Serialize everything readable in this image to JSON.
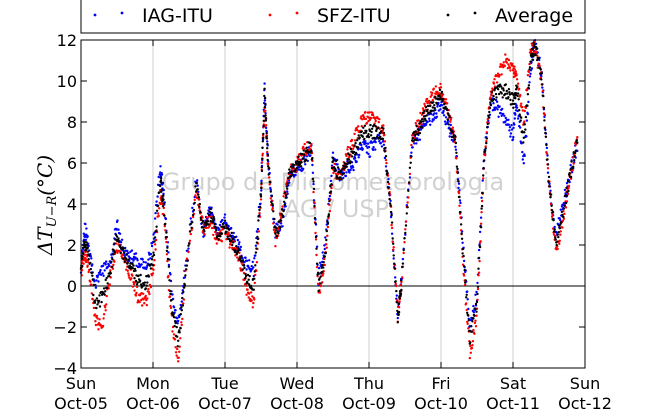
{
  "chart_data": {
    "type": "scatter",
    "title": "",
    "xlabel": "",
    "ylabel": "ΔT_{U−R}(°C)",
    "ylabel_main": "ΔT",
    "ylabel_sub": "U−R",
    "ylabel_unit": "(°C)",
    "ylim": [
      -4,
      12
    ],
    "yticks": [
      -4,
      -2,
      0,
      2,
      4,
      6,
      8,
      10,
      12
    ],
    "xlim": [
      0,
      7
    ],
    "xticks": [
      {
        "x": 0,
        "day": "Sun",
        "date": "Oct-05"
      },
      {
        "x": 1,
        "day": "Mon",
        "date": "Oct-06"
      },
      {
        "x": 2,
        "day": "Tue",
        "date": "Oct-07"
      },
      {
        "x": 3,
        "day": "Wed",
        "date": "Oct-08"
      },
      {
        "x": 4,
        "day": "Thu",
        "date": "Oct-09"
      },
      {
        "x": 5,
        "day": "Fri",
        "date": "Oct-10"
      },
      {
        "x": 6,
        "day": "Sat",
        "date": "Oct-11"
      },
      {
        "x": 7,
        "day": "Sun",
        "date": "Oct-12"
      }
    ],
    "grid": true,
    "zero_line": true,
    "legend_position": "top",
    "watermark_line1": "Grupo de Micrometeorologia",
    "watermark_line2": "IAG / USP",
    "series": [
      {
        "name": "IAG-ITU",
        "color": "#0000ff",
        "points": [
          [
            0,
            1.0
          ],
          [
            0.05,
            2.8
          ],
          [
            0.1,
            2.2
          ],
          [
            0.2,
            0.0
          ],
          [
            0.3,
            0.8
          ],
          [
            0.4,
            1.0
          ],
          [
            0.5,
            3.0
          ],
          [
            0.6,
            1.6
          ],
          [
            0.7,
            1.4
          ],
          [
            0.8,
            1.2
          ],
          [
            0.9,
            1.0
          ],
          [
            1.0,
            2.0
          ],
          [
            1.1,
            5.8
          ],
          [
            1.15,
            4.4
          ],
          [
            1.25,
            0.0
          ],
          [
            1.35,
            -2.0
          ],
          [
            1.45,
            0.8
          ],
          [
            1.6,
            5.2
          ],
          [
            1.7,
            2.6
          ],
          [
            1.8,
            3.8
          ],
          [
            1.9,
            2.6
          ],
          [
            2.0,
            3.2
          ],
          [
            2.1,
            2.4
          ],
          [
            2.2,
            1.8
          ],
          [
            2.3,
            1.0
          ],
          [
            2.4,
            0.8
          ],
          [
            2.5,
            4.6
          ],
          [
            2.55,
            9.6
          ],
          [
            2.6,
            6.0
          ],
          [
            2.7,
            2.6
          ],
          [
            2.8,
            3.2
          ],
          [
            2.9,
            5.4
          ],
          [
            3.0,
            5.8
          ],
          [
            3.1,
            6.0
          ],
          [
            3.2,
            6.8
          ],
          [
            3.3,
            0.4
          ],
          [
            3.4,
            2.2
          ],
          [
            3.5,
            6.4
          ],
          [
            3.6,
            5.4
          ],
          [
            3.7,
            5.8
          ],
          [
            3.8,
            6.0
          ],
          [
            3.9,
            7.0
          ],
          [
            4.0,
            6.6
          ],
          [
            4.1,
            7.0
          ],
          [
            4.2,
            7.2
          ],
          [
            4.3,
            4.0
          ],
          [
            4.4,
            -1.6
          ],
          [
            4.45,
            0.2
          ],
          [
            4.6,
            7.0
          ],
          [
            4.7,
            7.4
          ],
          [
            4.8,
            8.2
          ],
          [
            4.9,
            8.2
          ],
          [
            5.0,
            9.0
          ],
          [
            5.1,
            7.8
          ],
          [
            5.2,
            7.0
          ],
          [
            5.3,
            2.4
          ],
          [
            5.4,
            -2.0
          ],
          [
            5.5,
            -0.4
          ],
          [
            5.6,
            6.4
          ],
          [
            5.7,
            9.0
          ],
          [
            5.8,
            8.6
          ],
          [
            5.9,
            8.0
          ],
          [
            6.0,
            7.4
          ],
          [
            6.05,
            9.0
          ],
          [
            6.15,
            6.0
          ],
          [
            6.25,
            10.6
          ],
          [
            6.3,
            11.8
          ],
          [
            6.4,
            10.4
          ],
          [
            6.5,
            5.0
          ],
          [
            6.6,
            2.4
          ],
          [
            6.7,
            4.0
          ],
          [
            6.8,
            5.6
          ],
          [
            6.9,
            7.0
          ]
        ]
      },
      {
        "name": "SFZ-ITU",
        "color": "#ff0000",
        "points": [
          [
            0,
            0.6
          ],
          [
            0.05,
            1.6
          ],
          [
            0.1,
            1.0
          ],
          [
            0.2,
            -1.6
          ],
          [
            0.3,
            -2.0
          ],
          [
            0.4,
            0.4
          ],
          [
            0.5,
            2.0
          ],
          [
            0.6,
            1.2
          ],
          [
            0.7,
            0.4
          ],
          [
            0.8,
            -0.6
          ],
          [
            0.9,
            -0.8
          ],
          [
            1.0,
            0.6
          ],
          [
            1.1,
            4.4
          ],
          [
            1.15,
            3.6
          ],
          [
            1.25,
            -1.4
          ],
          [
            1.35,
            -3.6
          ],
          [
            1.45,
            0.4
          ],
          [
            1.6,
            4.6
          ],
          [
            1.7,
            2.8
          ],
          [
            1.8,
            3.2
          ],
          [
            1.9,
            2.2
          ],
          [
            2.0,
            2.6
          ],
          [
            2.1,
            2.0
          ],
          [
            2.2,
            1.4
          ],
          [
            2.3,
            -0.2
          ],
          [
            2.4,
            -0.8
          ],
          [
            2.5,
            4.4
          ],
          [
            2.55,
            9.0
          ],
          [
            2.6,
            5.8
          ],
          [
            2.7,
            2.2
          ],
          [
            2.8,
            3.8
          ],
          [
            2.9,
            5.6
          ],
          [
            3.0,
            6.0
          ],
          [
            3.1,
            6.6
          ],
          [
            3.2,
            7.0
          ],
          [
            3.3,
            -0.6
          ],
          [
            3.4,
            1.6
          ],
          [
            3.5,
            5.8
          ],
          [
            3.6,
            5.2
          ],
          [
            3.7,
            6.4
          ],
          [
            3.8,
            7.2
          ],
          [
            3.9,
            8.0
          ],
          [
            4.0,
            8.4
          ],
          [
            4.1,
            8.0
          ],
          [
            4.2,
            7.6
          ],
          [
            4.3,
            4.0
          ],
          [
            4.4,
            -1.4
          ],
          [
            4.45,
            0.0
          ],
          [
            4.6,
            7.2
          ],
          [
            4.7,
            8.0
          ],
          [
            4.8,
            8.8
          ],
          [
            4.9,
            9.4
          ],
          [
            5.0,
            9.6
          ],
          [
            5.1,
            8.6
          ],
          [
            5.2,
            7.0
          ],
          [
            5.3,
            1.4
          ],
          [
            5.4,
            -3.2
          ],
          [
            5.5,
            -1.4
          ],
          [
            5.6,
            6.2
          ],
          [
            5.7,
            9.6
          ],
          [
            5.8,
            10.4
          ],
          [
            5.9,
            11.0
          ],
          [
            6.0,
            10.6
          ],
          [
            6.05,
            10.2
          ],
          [
            6.15,
            8.0
          ],
          [
            6.25,
            11.6
          ],
          [
            6.3,
            11.6
          ],
          [
            6.4,
            10.0
          ],
          [
            6.5,
            5.0
          ],
          [
            6.6,
            1.6
          ],
          [
            6.7,
            3.4
          ],
          [
            6.8,
            5.4
          ],
          [
            6.9,
            7.4
          ]
        ]
      },
      {
        "name": "Average",
        "color": "#000000",
        "points": [
          [
            0,
            0.8
          ],
          [
            0.05,
            2.2
          ],
          [
            0.1,
            1.6
          ],
          [
            0.2,
            -0.8
          ],
          [
            0.3,
            -0.6
          ],
          [
            0.4,
            0.7
          ],
          [
            0.5,
            2.5
          ],
          [
            0.6,
            1.4
          ],
          [
            0.7,
            0.9
          ],
          [
            0.8,
            0.3
          ],
          [
            0.9,
            0.1
          ],
          [
            1.0,
            1.3
          ],
          [
            1.1,
            5.1
          ],
          [
            1.15,
            4.0
          ],
          [
            1.25,
            -0.7
          ],
          [
            1.35,
            -2.8
          ],
          [
            1.45,
            0.6
          ],
          [
            1.6,
            4.9
          ],
          [
            1.7,
            2.7
          ],
          [
            1.8,
            3.5
          ],
          [
            1.9,
            2.4
          ],
          [
            2.0,
            2.9
          ],
          [
            2.1,
            2.2
          ],
          [
            2.2,
            1.6
          ],
          [
            2.3,
            0.4
          ],
          [
            2.4,
            0.0
          ],
          [
            2.5,
            4.5
          ],
          [
            2.55,
            9.3
          ],
          [
            2.6,
            5.9
          ],
          [
            2.7,
            2.4
          ],
          [
            2.8,
            3.5
          ],
          [
            2.9,
            5.5
          ],
          [
            3.0,
            5.9
          ],
          [
            3.1,
            6.3
          ],
          [
            3.2,
            6.9
          ],
          [
            3.3,
            -0.1
          ],
          [
            3.4,
            1.9
          ],
          [
            3.5,
            6.1
          ],
          [
            3.6,
            5.3
          ],
          [
            3.7,
            6.1
          ],
          [
            3.8,
            6.6
          ],
          [
            3.9,
            7.5
          ],
          [
            4.0,
            7.5
          ],
          [
            4.1,
            7.5
          ],
          [
            4.2,
            7.4
          ],
          [
            4.3,
            4.0
          ],
          [
            4.4,
            -1.5
          ],
          [
            4.45,
            0.1
          ],
          [
            4.6,
            7.1
          ],
          [
            4.7,
            7.7
          ],
          [
            4.8,
            8.5
          ],
          [
            4.9,
            8.8
          ],
          [
            5.0,
            9.3
          ],
          [
            5.1,
            8.2
          ],
          [
            5.2,
            7.0
          ],
          [
            5.3,
            1.9
          ],
          [
            5.4,
            -2.6
          ],
          [
            5.5,
            -0.9
          ],
          [
            5.6,
            6.3
          ],
          [
            5.7,
            9.3
          ],
          [
            5.8,
            9.5
          ],
          [
            5.9,
            9.5
          ],
          [
            6.0,
            9.0
          ],
          [
            6.05,
            9.6
          ],
          [
            6.15,
            7.0
          ],
          [
            6.25,
            11.1
          ],
          [
            6.3,
            11.7
          ],
          [
            6.4,
            10.2
          ],
          [
            6.5,
            5.0
          ],
          [
            6.6,
            2.0
          ],
          [
            6.7,
            3.7
          ],
          [
            6.8,
            5.5
          ],
          [
            6.9,
            7.2
          ]
        ]
      }
    ]
  }
}
